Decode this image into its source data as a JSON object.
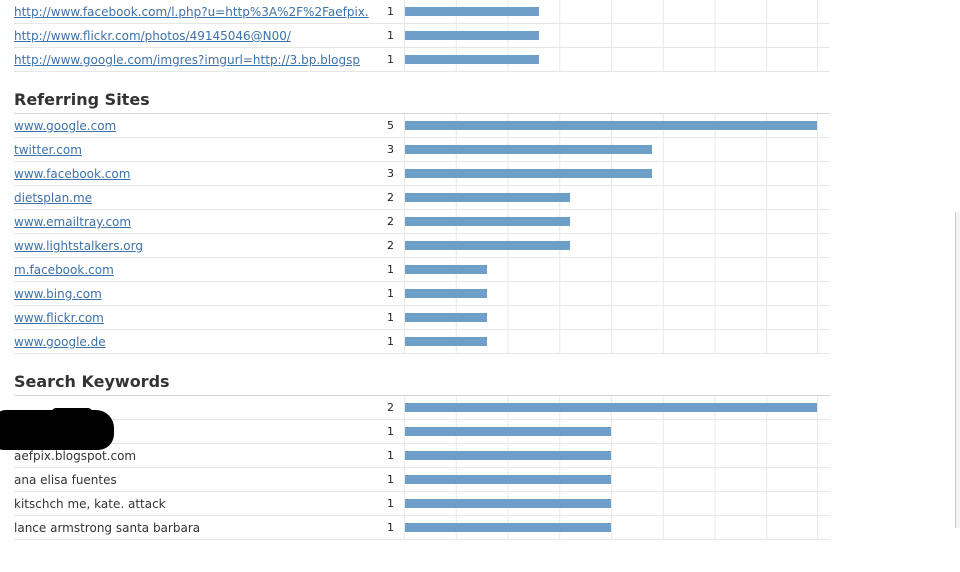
{
  "max_bar_value": 5,
  "bar_color": "#6e9fc9",
  "top_links": [
    {
      "label": "http://www.facebook.com/l.php?u=http%3A%2F%2Faefpix.",
      "count": 1
    },
    {
      "label": "http://www.flickr.com/photos/49145046@N00/",
      "count": 1
    },
    {
      "label": "http://www.google.com/imgres?imgurl=http://3.bp.blogsp",
      "count": 1
    }
  ],
  "referring_sites": {
    "title": "Referring Sites",
    "items": [
      {
        "label": "www.google.com",
        "count": 5
      },
      {
        "label": "twitter.com",
        "count": 3
      },
      {
        "label": "www.facebook.com",
        "count": 3
      },
      {
        "label": "dietsplan.me",
        "count": 2
      },
      {
        "label": "www.emailtray.com",
        "count": 2
      },
      {
        "label": "www.lightstalkers.org",
        "count": 2
      },
      {
        "label": "m.facebook.com",
        "count": 1
      },
      {
        "label": "www.bing.com",
        "count": 1
      },
      {
        "label": "www.flickr.com",
        "count": 1
      },
      {
        "label": "www.google.de",
        "count": 1
      }
    ]
  },
  "search_keywords": {
    "title": "Search Keywords",
    "max_bar_value": 2,
    "items": [
      {
        "label": "",
        "count": 2
      },
      {
        "label": "",
        "count": 1
      },
      {
        "label": "aefpix.blogspot.com",
        "count": 1
      },
      {
        "label": "ana elisa fuentes",
        "count": 1
      },
      {
        "label": "kitschch me, kate. attack",
        "count": 1
      },
      {
        "label": "lance armstrong santa barbara",
        "count": 1
      }
    ]
  }
}
